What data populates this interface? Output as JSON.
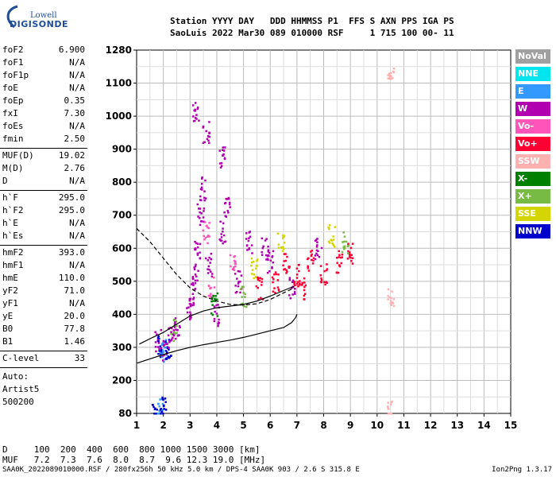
{
  "logo": {
    "line1": "Lowell",
    "line2": "DIGISONDE"
  },
  "header": {
    "line1": "Station YYYY DAY   DDD HHMMSS P1  FFS S AXN PPS IGA PS",
    "line2": "SaoLuis 2022 Mar30 089 010000 RSF     1 715 100 00- 11"
  },
  "params": {
    "group1": [
      {
        "name": "foF2",
        "value": "6.900"
      },
      {
        "name": "foF1",
        "value": "N/A"
      },
      {
        "name": "foF1p",
        "value": "N/A"
      },
      {
        "name": "foE",
        "value": "N/A"
      },
      {
        "name": "foEp",
        "value": "0.35"
      },
      {
        "name": "fxI",
        "value": "7.30"
      },
      {
        "name": "foEs",
        "value": "N/A"
      },
      {
        "name": "fmin",
        "value": "2.50"
      }
    ],
    "group2": [
      {
        "name": "MUF(D)",
        "value": "19.02"
      },
      {
        "name": "M(D)",
        "value": "2.76"
      },
      {
        "name": "D",
        "value": "N/A"
      }
    ],
    "group3": [
      {
        "name": "h`F",
        "value": "295.0"
      },
      {
        "name": "h`F2",
        "value": "295.0"
      },
      {
        "name": "h`E",
        "value": "N/A"
      },
      {
        "name": "h`Es",
        "value": "N/A"
      }
    ],
    "group4": [
      {
        "name": "hmF2",
        "value": "393.0"
      },
      {
        "name": "hmF1",
        "value": "N/A"
      },
      {
        "name": "hmE",
        "value": "110.0"
      },
      {
        "name": "yF2",
        "value": "71.0"
      },
      {
        "name": "yF1",
        "value": "N/A"
      },
      {
        "name": "yE",
        "value": "20.0"
      },
      {
        "name": "B0",
        "value": "77.8"
      },
      {
        "name": "B1",
        "value": "1.46"
      }
    ],
    "clevel": {
      "name": "C-level",
      "value": "33"
    },
    "auto": [
      "Auto:",
      "Artist5",
      "500200"
    ]
  },
  "legend": [
    {
      "label": "NoVal",
      "color": "#a0a0a0"
    },
    {
      "label": "NNE",
      "color": "#00e5ee"
    },
    {
      "label": "E",
      "color": "#3399ff"
    },
    {
      "label": "W",
      "color": "#b000b0"
    },
    {
      "label": "Vo-",
      "color": "#ff55bb"
    },
    {
      "label": "Vo+",
      "color": "#ff0033"
    },
    {
      "label": "SSW",
      "color": "#ffb0b0"
    },
    {
      "label": "X-",
      "color": "#008000"
    },
    {
      "label": "X+",
      "color": "#77bb44"
    },
    {
      "label": "SSE",
      "color": "#d4d400"
    },
    {
      "label": "NNW",
      "color": "#0000cc"
    }
  ],
  "footer": {
    "dist_line": "D     100  200  400  600  800 1000 1500 3000 [km]",
    "muf_line": "MUF   7.2  7.3  7.6  8.0  8.7  9.6 12.3 19.0 [MHz]",
    "file_line": "SAA0K_2022089010000.RSF / 280fx256h 50 kHz 5.0 km / DPS-4 SAA0K 903 / 2.6 S 315.8 E",
    "version": "Ion2Png 1.3.17"
  },
  "chart_data": {
    "type": "scatter",
    "x_ticks": [
      1,
      2,
      3,
      4,
      5,
      6,
      7,
      8,
      9,
      10,
      11,
      12,
      13,
      14,
      15
    ],
    "y_ticks": [
      80,
      200,
      300,
      400,
      500,
      600,
      700,
      800,
      900,
      1000,
      1100,
      1280
    ],
    "xlim": [
      1,
      15
    ],
    "ylim": [
      80,
      1280
    ],
    "grid": true,
    "traces": [
      {
        "name": "h'F trace",
        "points": [
          [
            1.0,
            252
          ],
          [
            1.5,
            265
          ],
          [
            2.0,
            278
          ],
          [
            2.5,
            290
          ],
          [
            3.0,
            300
          ],
          [
            3.5,
            308
          ],
          [
            4.0,
            315
          ],
          [
            4.5,
            322
          ],
          [
            5.0,
            330
          ],
          [
            5.5,
            340
          ],
          [
            6.0,
            350
          ],
          [
            6.5,
            360
          ],
          [
            6.8,
            375
          ],
          [
            6.95,
            390
          ],
          [
            7.0,
            400
          ]
        ]
      },
      {
        "name": "profile",
        "points": [
          [
            1.1,
            310
          ],
          [
            1.6,
            330
          ],
          [
            2.0,
            345
          ],
          [
            2.5,
            370
          ],
          [
            3.0,
            395
          ],
          [
            3.5,
            410
          ],
          [
            4.0,
            420
          ],
          [
            4.5,
            425
          ],
          [
            5.0,
            430
          ],
          [
            5.5,
            440
          ],
          [
            6.0,
            455
          ],
          [
            6.5,
            472
          ],
          [
            6.9,
            485
          ]
        ]
      },
      {
        "name": "profile-upper",
        "dashed": true,
        "points": [
          [
            1.0,
            660
          ],
          [
            1.5,
            620
          ],
          [
            2.0,
            570
          ],
          [
            2.5,
            520
          ],
          [
            3.0,
            480
          ],
          [
            3.5,
            455
          ],
          [
            4.0,
            440
          ],
          [
            4.5,
            430
          ],
          [
            5.0,
            428
          ],
          [
            5.5,
            432
          ],
          [
            6.0,
            445
          ],
          [
            6.5,
            465
          ],
          [
            6.9,
            480
          ]
        ]
      }
    ],
    "echo_points": [
      {
        "f": 1.8,
        "h": 320,
        "c": "W"
      },
      {
        "f": 1.9,
        "h": 300,
        "c": "NNW"
      },
      {
        "f": 2.0,
        "h": 290,
        "c": "E"
      },
      {
        "f": 2.1,
        "h": 285,
        "c": "W"
      },
      {
        "f": 2.2,
        "h": 300,
        "c": "NNW"
      },
      {
        "f": 2.3,
        "h": 330,
        "c": "W"
      },
      {
        "f": 2.4,
        "h": 350,
        "c": "X+"
      },
      {
        "f": 2.5,
        "h": 360,
        "c": "W"
      },
      {
        "f": 1.7,
        "h": 95,
        "c": "NNW"
      },
      {
        "f": 1.9,
        "h": 100,
        "c": "E"
      },
      {
        "f": 2.0,
        "h": 105,
        "c": "NNW"
      },
      {
        "f": 3.0,
        "h": 420,
        "c": "W"
      },
      {
        "f": 3.1,
        "h": 460,
        "c": "W"
      },
      {
        "f": 3.2,
        "h": 520,
        "c": "W"
      },
      {
        "f": 3.3,
        "h": 600,
        "c": "W"
      },
      {
        "f": 3.4,
        "h": 700,
        "c": "W"
      },
      {
        "f": 3.5,
        "h": 780,
        "c": "W"
      },
      {
        "f": 3.6,
        "h": 650,
        "c": "Vo-"
      },
      {
        "f": 3.7,
        "h": 550,
        "c": "W"
      },
      {
        "f": 3.8,
        "h": 480,
        "c": "Vo-"
      },
      {
        "f": 3.9,
        "h": 430,
        "c": "X-"
      },
      {
        "f": 4.0,
        "h": 400,
        "c": "W"
      },
      {
        "f": 4.2,
        "h": 650,
        "c": "W"
      },
      {
        "f": 4.4,
        "h": 720,
        "c": "W"
      },
      {
        "f": 4.6,
        "h": 560,
        "c": "Vo-"
      },
      {
        "f": 4.8,
        "h": 500,
        "c": "W"
      },
      {
        "f": 5.0,
        "h": 450,
        "c": "X+"
      },
      {
        "f": 5.2,
        "h": 620,
        "c": "W"
      },
      {
        "f": 5.4,
        "h": 540,
        "c": "SSE"
      },
      {
        "f": 5.6,
        "h": 480,
        "c": "Vo+"
      },
      {
        "f": 5.8,
        "h": 600,
        "c": "W"
      },
      {
        "f": 6.0,
        "h": 560,
        "c": "W"
      },
      {
        "f": 6.2,
        "h": 500,
        "c": "Vo+"
      },
      {
        "f": 6.4,
        "h": 620,
        "c": "SSE"
      },
      {
        "f": 6.6,
        "h": 560,
        "c": "Vo+"
      },
      {
        "f": 6.8,
        "h": 480,
        "c": "W"
      },
      {
        "f": 7.0,
        "h": 520,
        "c": "Vo+"
      },
      {
        "f": 7.2,
        "h": 480,
        "c": "Vo+"
      },
      {
        "f": 7.5,
        "h": 560,
        "c": "Vo+"
      },
      {
        "f": 7.8,
        "h": 600,
        "c": "W"
      },
      {
        "f": 8.0,
        "h": 520,
        "c": "Vo+"
      },
      {
        "f": 8.3,
        "h": 640,
        "c": "SSE"
      },
      {
        "f": 8.6,
        "h": 560,
        "c": "Vo+"
      },
      {
        "f": 8.8,
        "h": 620,
        "c": "X+"
      },
      {
        "f": 9.0,
        "h": 580,
        "c": "Vo+"
      },
      {
        "f": 10.5,
        "h": 1150,
        "c": "SSW"
      },
      {
        "f": 10.5,
        "h": 450,
        "c": "SSW"
      },
      {
        "f": 10.5,
        "h": 90,
        "c": "SSW"
      },
      {
        "f": 3.2,
        "h": 1020,
        "c": "W"
      },
      {
        "f": 3.6,
        "h": 950,
        "c": "W"
      },
      {
        "f": 4.2,
        "h": 880,
        "c": "W"
      }
    ]
  }
}
